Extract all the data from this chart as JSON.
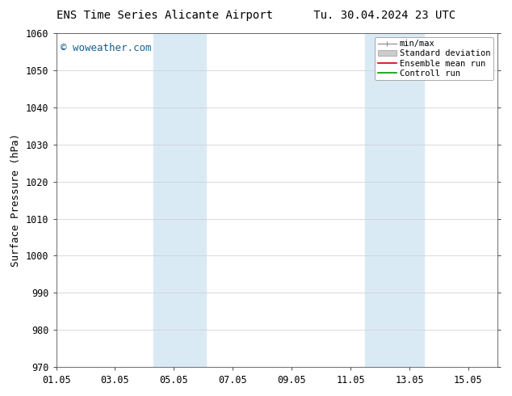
{
  "title": "ENS Time Series Alicante Airport      Tu. 30.04.2024 23 UTC",
  "ylabel": "Surface Pressure (hPa)",
  "ylim": [
    970,
    1060
  ],
  "yticks": [
    970,
    980,
    990,
    1000,
    1010,
    1020,
    1030,
    1040,
    1050,
    1060
  ],
  "xlim": [
    0,
    15
  ],
  "xtick_labels": [
    "01.05",
    "03.05",
    "05.05",
    "07.05",
    "09.05",
    "11.05",
    "13.05",
    "15.05"
  ],
  "xtick_positions": [
    0,
    2,
    4,
    6,
    8,
    10,
    12,
    14
  ],
  "shaded_bands": [
    {
      "x_start": 3.3,
      "x_end": 5.1
    },
    {
      "x_start": 10.5,
      "x_end": 12.5
    }
  ],
  "shade_color": "#daeaf5",
  "watermark": "© woweather.com",
  "watermark_color": "#1a5f8a",
  "legend_labels": [
    "min/max",
    "Standard deviation",
    "Ensemble mean run",
    "Controll run"
  ],
  "legend_colors": [
    "#999999",
    "#cccccc",
    "#cc0000",
    "#009900"
  ],
  "background_color": "#ffffff",
  "grid_color": "#cccccc",
  "title_fontsize": 10,
  "tick_fontsize": 8.5,
  "ylabel_fontsize": 9,
  "watermark_fontsize": 9,
  "legend_fontsize": 7.5
}
